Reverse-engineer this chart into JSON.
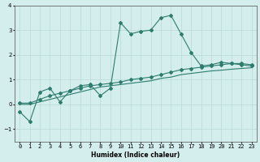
{
  "x": [
    0,
    1,
    2,
    3,
    4,
    5,
    6,
    7,
    8,
    9,
    10,
    11,
    12,
    13,
    14,
    15,
    16,
    17,
    18,
    19,
    20,
    21,
    22,
    23
  ],
  "line1": [
    -0.3,
    -0.7,
    0.5,
    0.65,
    0.1,
    0.55,
    0.75,
    0.8,
    0.35,
    0.65,
    3.3,
    2.85,
    2.95,
    3.0,
    3.5,
    3.6,
    2.85,
    2.1,
    1.55,
    1.6,
    1.7,
    1.65,
    1.6,
    1.55
  ],
  "line2": [
    0.05,
    0.05,
    0.2,
    0.35,
    0.45,
    0.55,
    0.65,
    0.75,
    0.8,
    0.85,
    0.9,
    1.0,
    1.05,
    1.1,
    1.2,
    1.3,
    1.4,
    1.45,
    1.5,
    1.55,
    1.6,
    1.65,
    1.65,
    1.6
  ],
  "line3": [
    0.0,
    0.0,
    0.1,
    0.2,
    0.3,
    0.4,
    0.5,
    0.6,
    0.7,
    0.75,
    0.8,
    0.85,
    0.9,
    0.95,
    1.05,
    1.1,
    1.2,
    1.25,
    1.3,
    1.35,
    1.38,
    1.42,
    1.45,
    1.48
  ],
  "line_color": "#2d7c6e",
  "bg_color": "#d4eeee",
  "grid_color": "#b8d8d4",
  "xlabel": "Humidex (Indice chaleur)",
  "ylim": [
    -1.5,
    4.0
  ],
  "xlim": [
    -0.5,
    23.5
  ]
}
